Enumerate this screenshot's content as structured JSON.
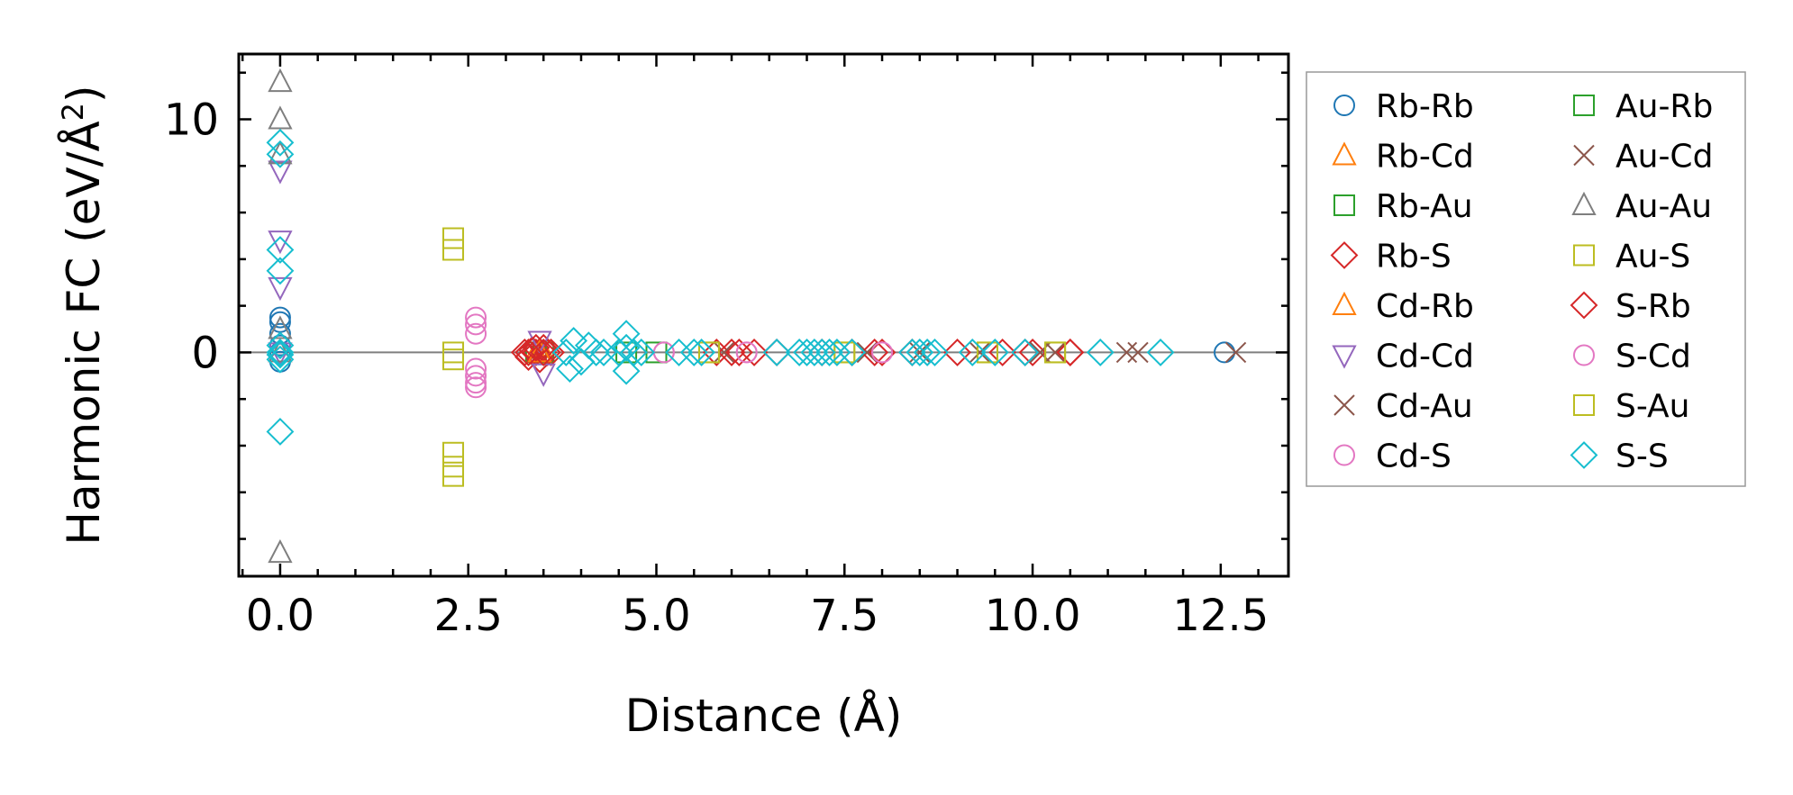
{
  "chart_data": {
    "type": "scatter",
    "title": "",
    "xlabel": "Distance (Å)",
    "ylabel_main": "Harmonic FC (eV/Å",
    "ylabel_sup": "2",
    "ylabel_close": ")",
    "xlim": [
      -0.55,
      13.4
    ],
    "ylim": [
      -9.6,
      12.8
    ],
    "xticks": [
      0.0,
      2.5,
      5.0,
      7.5,
      10.0,
      12.5
    ],
    "xtick_labels": [
      "0.0",
      "2.5",
      "5.0",
      "7.5",
      "10.0",
      "12.5"
    ],
    "yticks": [
      0,
      10
    ],
    "ytick_labels": [
      "0",
      "10"
    ],
    "legend_position": "outside-right",
    "series": [
      {
        "name": "Rb-Rb",
        "marker": "o",
        "color": "#1f77b4",
        "x": [
          0,
          0,
          0,
          0,
          0,
          0,
          12.55
        ],
        "y": [
          1.5,
          1.3,
          0.8,
          0.3,
          0,
          -0.4,
          0
        ]
      },
      {
        "name": "Rb-Cd",
        "marker": "^",
        "color": "#ff7f0e",
        "x": [
          3.4,
          3.5
        ],
        "y": [
          0,
          0
        ]
      },
      {
        "name": "Rb-Au",
        "marker": "s",
        "color": "#2ca02c",
        "x": [
          3.4,
          3.5
        ],
        "y": [
          0,
          0
        ]
      },
      {
        "name": "Rb-S",
        "marker": "D",
        "color": "#d62728",
        "x": [
          3.25,
          3.3,
          3.35,
          3.4,
          3.45,
          3.5,
          3.55,
          3.6,
          5.8,
          6.1,
          6.3,
          6.6,
          7.2,
          7.6,
          8.0,
          8.4,
          9.0,
          9.6,
          10.0,
          10.5
        ],
        "y": [
          0,
          -0.2,
          0.1,
          0,
          -0.3,
          0.2,
          0,
          0,
          0,
          0,
          0,
          0,
          0,
          0,
          0,
          0,
          0,
          0,
          0,
          0
        ]
      },
      {
        "name": "Cd-Rb",
        "marker": "^",
        "color": "#ff7f0e",
        "x": [
          3.45
        ],
        "y": [
          0
        ]
      },
      {
        "name": "Cd-Cd",
        "marker": "v",
        "color": "#9467bd",
        "x": [
          0,
          0,
          0,
          0,
          3.5,
          3.45
        ],
        "y": [
          7.8,
          4.8,
          2.8,
          0,
          -0.9,
          0.5
        ]
      },
      {
        "name": "Cd-Au",
        "marker": "x",
        "color": "#8c564b",
        "x": [
          5.9,
          7.8,
          9.3,
          10.3,
          11.25,
          11.4,
          12.7
        ],
        "y": [
          0,
          0,
          0,
          0,
          0,
          0,
          0
        ]
      },
      {
        "name": "Cd-S",
        "marker": "o",
        "color": "#e377c2",
        "x": [
          2.6,
          2.6,
          2.6,
          2.6,
          2.6,
          2.6,
          2.6,
          5.1,
          6.2
        ],
        "y": [
          1.5,
          1.2,
          0.8,
          -0.7,
          -1.0,
          -1.3,
          -1.5,
          0,
          0
        ]
      },
      {
        "name": "Au-Rb",
        "marker": "s",
        "color": "#2ca02c",
        "x": [
          4.6,
          5.0
        ],
        "y": [
          0,
          0
        ]
      },
      {
        "name": "Au-Cd",
        "marker": "x",
        "color": "#8c564b",
        "x": [
          8.5,
          10.1
        ],
        "y": [
          0,
          0
        ]
      },
      {
        "name": "Au-Au",
        "marker": "^",
        "color": "#7f7f7f",
        "x": [
          0,
          0,
          0,
          0,
          0,
          0
        ],
        "y": [
          11.6,
          10.0,
          8.5,
          1.0,
          0,
          -8.6
        ]
      },
      {
        "name": "Au-S",
        "marker": "s",
        "color": "#bcbd22",
        "x": [
          2.3,
          2.3,
          2.3,
          2.3,
          2.3,
          2.3,
          2.3,
          5.7,
          7.5,
          9.4,
          10.3
        ],
        "y": [
          4.9,
          4.4,
          0,
          -0.3,
          -4.3,
          -4.9,
          -5.3,
          0,
          0,
          0,
          0
        ]
      },
      {
        "name": "S-Rb",
        "marker": "D",
        "color": "#d62728",
        "x": [
          3.3,
          3.4,
          3.5,
          6.0,
          7.9,
          9.9,
          10.5
        ],
        "y": [
          0,
          0.2,
          0,
          0,
          0,
          0,
          0
        ]
      },
      {
        "name": "S-Cd",
        "marker": "o",
        "color": "#e377c2",
        "x": [
          5.1,
          6.2,
          8.0
        ],
        "y": [
          0,
          0,
          0
        ]
      },
      {
        "name": "S-Au",
        "marker": "s",
        "color": "#bcbd22",
        "x": [
          5.7,
          7.5,
          9.4,
          10.3
        ],
        "y": [
          0,
          0,
          0,
          0
        ]
      },
      {
        "name": "S-S",
        "marker": "D",
        "color": "#17becf",
        "x": [
          0,
          0,
          0,
          0,
          0,
          0,
          0,
          0,
          0,
          3.8,
          3.85,
          3.9,
          4.0,
          4.1,
          4.2,
          4.3,
          4.5,
          4.6,
          4.6,
          4.6,
          4.7,
          4.8,
          5.3,
          5.5,
          5.6,
          6.6,
          6.9,
          7.0,
          7.1,
          7.2,
          7.3,
          7.4,
          7.6,
          8.4,
          8.5,
          8.6,
          8.7,
          9.2,
          9.5,
          9.9,
          10.9,
          11.7
        ],
        "y": [
          9.0,
          8.5,
          4.4,
          3.5,
          0.3,
          0,
          -0.1,
          -0.3,
          -3.4,
          0,
          -0.7,
          0.5,
          -0.4,
          0.3,
          0,
          0,
          0,
          0.8,
          -0.8,
          0.2,
          0,
          0,
          0,
          0,
          0,
          0,
          0,
          0,
          0,
          0,
          0,
          0,
          0,
          0,
          0,
          0,
          0,
          0,
          0,
          0,
          0,
          0
        ]
      }
    ]
  }
}
